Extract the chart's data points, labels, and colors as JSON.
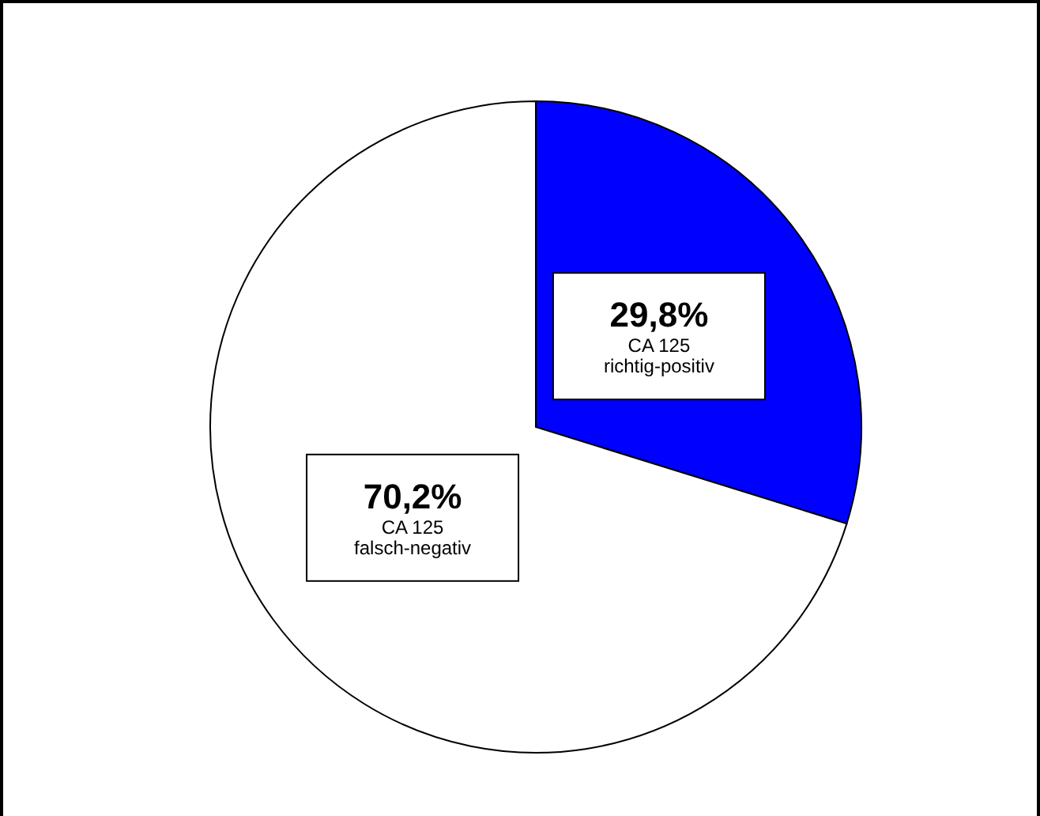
{
  "chart_data": {
    "type": "pie",
    "categories": [
      "CA 125\nrichtig-positiv",
      "CA 125\nfalsch-negativ"
    ],
    "values": [
      29.8,
      70.2
    ],
    "colors": [
      "#0000ff",
      "#ffffff"
    ],
    "value_labels": [
      "29,8%",
      "70,2%"
    ]
  }
}
